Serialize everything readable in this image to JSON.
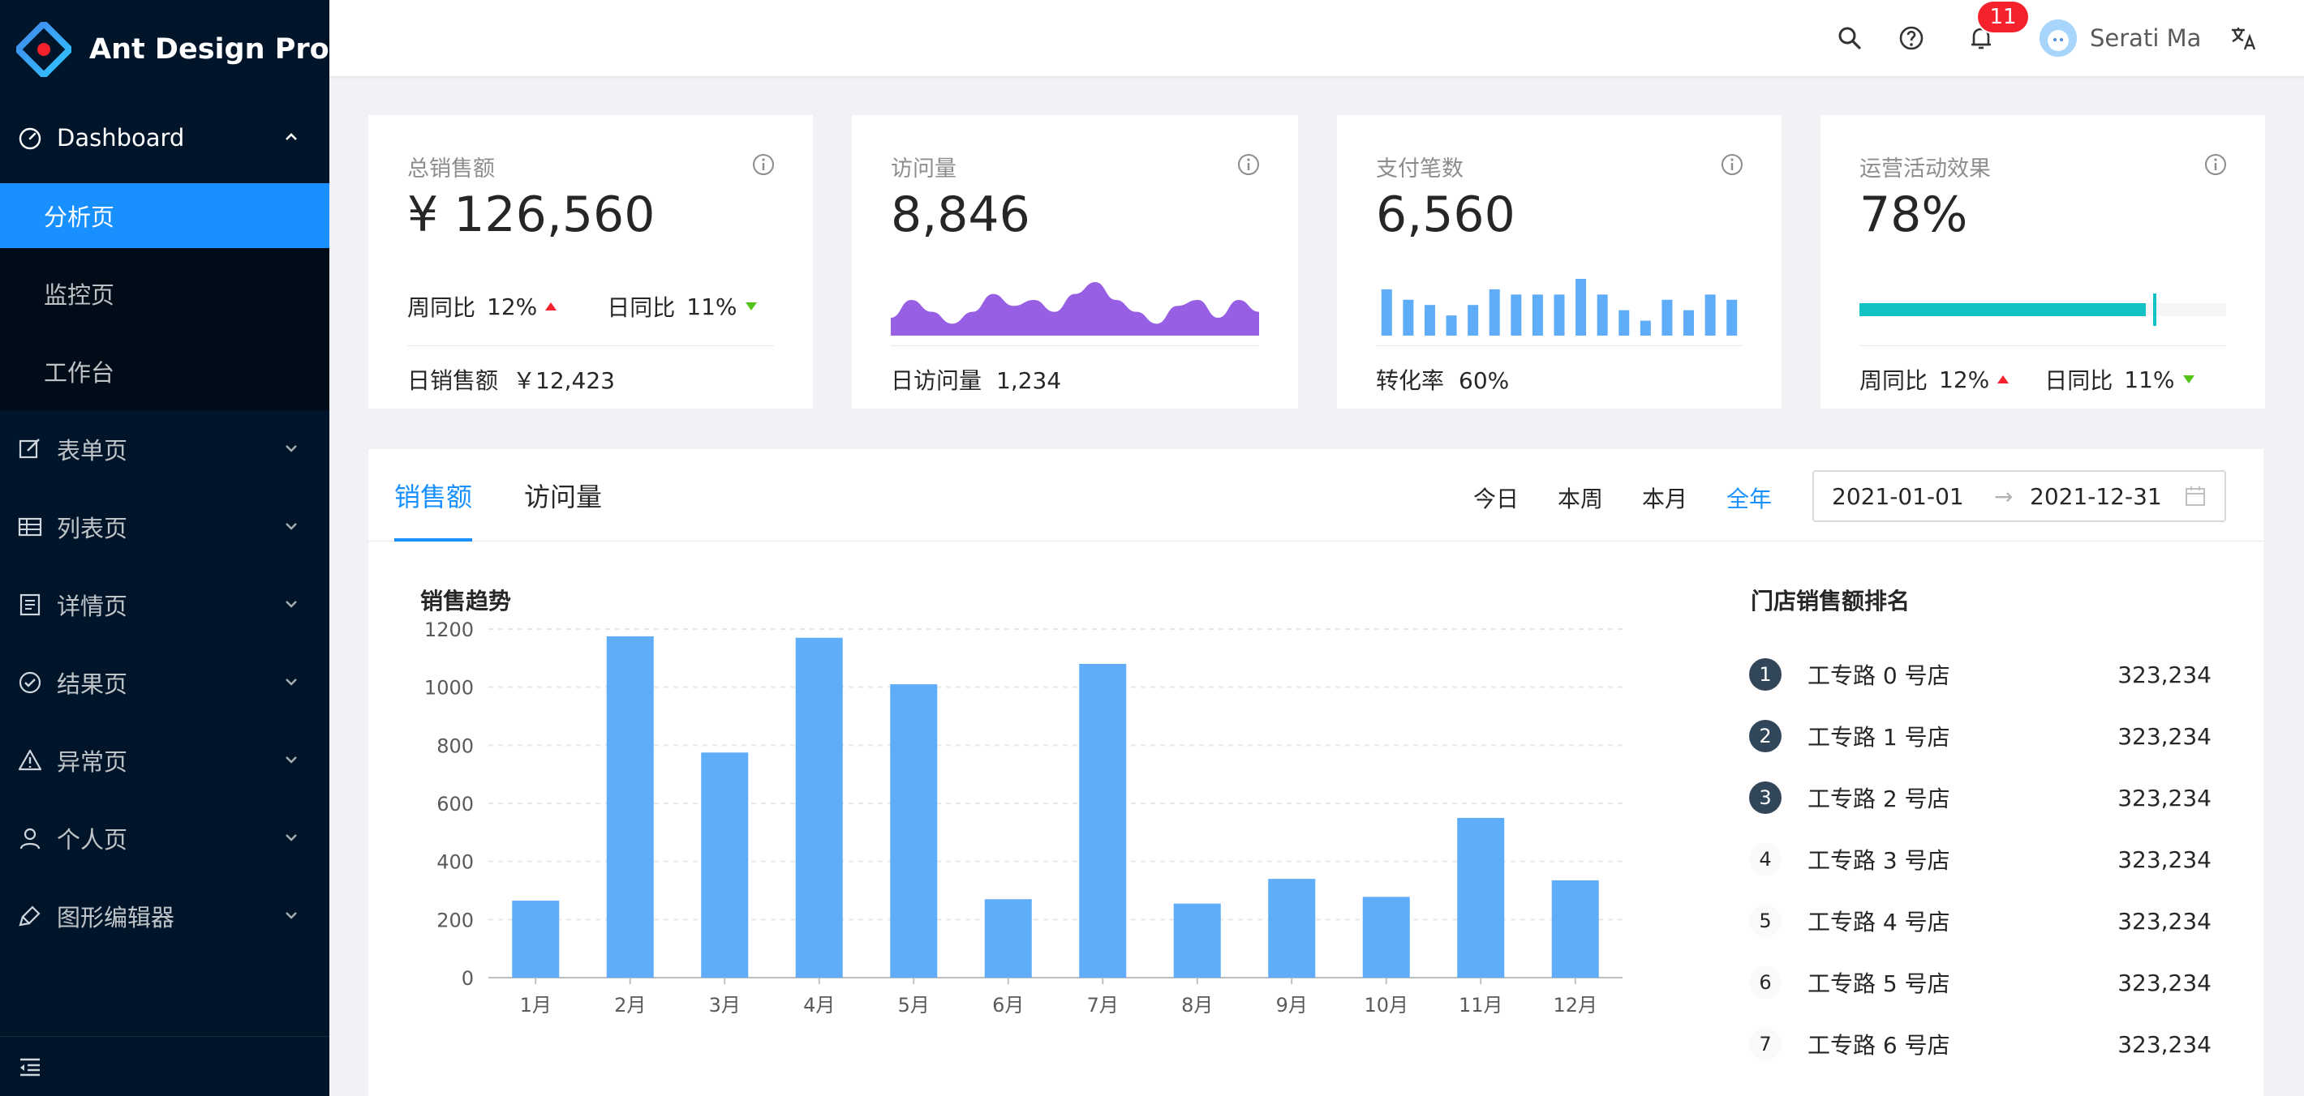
{
  "app": {
    "title": "Ant Design Pro"
  },
  "sidebar": {
    "items": [
      {
        "label": "Dashboard",
        "icon": "dashboard-icon",
        "open": true,
        "children": [
          {
            "label": "分析页",
            "active": true
          },
          {
            "label": "监控页",
            "active": false
          },
          {
            "label": "工作台",
            "active": false
          }
        ]
      },
      {
        "label": "表单页",
        "icon": "form-icon"
      },
      {
        "label": "列表页",
        "icon": "table-icon"
      },
      {
        "label": "详情页",
        "icon": "profile-icon"
      },
      {
        "label": "结果页",
        "icon": "check-circle-icon"
      },
      {
        "label": "异常页",
        "icon": "warning-icon"
      },
      {
        "label": "个人页",
        "icon": "user-icon"
      },
      {
        "label": "图形编辑器",
        "icon": "highlight-icon"
      }
    ]
  },
  "header": {
    "notification_count": "11",
    "user_name": "Serati Ma"
  },
  "cards": {
    "sales": {
      "title": "总销售额",
      "value": "¥ 126,560",
      "wow_label": "周同比",
      "wow_value": "12%",
      "dod_label": "日同比",
      "dod_value": "11%",
      "foot_label": "日销售额",
      "foot_value": "￥12,423"
    },
    "visits": {
      "title": "访问量",
      "value": "8,846",
      "foot_label": "日访问量",
      "foot_value": "1,234",
      "area": [
        3,
        6,
        4,
        2,
        4,
        7,
        5,
        6,
        4,
        7,
        9,
        6,
        4,
        2,
        5,
        6,
        3,
        6,
        4
      ]
    },
    "payments": {
      "title": "支付笔数",
      "value": "6,560",
      "foot_label": "转化率",
      "foot_value": "60%",
      "bars": [
        7,
        5,
        4,
        2,
        4,
        7,
        6,
        6,
        6,
        9,
        6,
        3,
        1,
        5,
        3,
        6,
        5
      ]
    },
    "operation": {
      "title": "运营活动效果",
      "value": "78%",
      "progress": 78,
      "target": 80,
      "wow_label": "周同比",
      "wow_value": "12%",
      "dod_label": "日同比",
      "dod_value": "11%"
    }
  },
  "sales_panel": {
    "tabs": [
      "销售额",
      "访问量"
    ],
    "ranges": [
      "今日",
      "本周",
      "本月",
      "全年"
    ],
    "active_range": "全年",
    "date_start": "2021-01-01",
    "date_end": "2021-12-31",
    "date_sep": "→",
    "chart_title": "销售趋势",
    "ranking_title": "门店销售额排名",
    "ranking": [
      {
        "rank": "1",
        "name": "工专路 0 号店",
        "value": "323,234"
      },
      {
        "rank": "2",
        "name": "工专路 1 号店",
        "value": "323,234"
      },
      {
        "rank": "3",
        "name": "工专路 2 号店",
        "value": "323,234"
      },
      {
        "rank": "4",
        "name": "工专路 3 号店",
        "value": "323,234"
      },
      {
        "rank": "5",
        "name": "工专路 4 号店",
        "value": "323,234"
      },
      {
        "rank": "6",
        "name": "工专路 5 号店",
        "value": "323,234"
      },
      {
        "rank": "7",
        "name": "工专路 6 号店",
        "value": "323,234"
      }
    ]
  },
  "colors": {
    "primary": "#1890ff",
    "sider": "#001529",
    "bar": "#5fadf8",
    "area": "#975fe4",
    "progress": "#13c2c2",
    "up": "#f5222d",
    "down": "#52c41a"
  },
  "chart_data": {
    "type": "bar",
    "categories": [
      "1月",
      "2月",
      "3月",
      "4月",
      "5月",
      "6月",
      "7月",
      "8月",
      "9月",
      "10月",
      "11月",
      "12月"
    ],
    "values": [
      265,
      1175,
      775,
      1170,
      1010,
      270,
      1080,
      255,
      340,
      278,
      550,
      335
    ],
    "title": "销售趋势",
    "xlabel": "",
    "ylabel": "",
    "ylim": [
      0,
      1200
    ],
    "yticks": [
      0,
      200,
      400,
      600,
      800,
      1000,
      1200
    ],
    "grid": true
  }
}
